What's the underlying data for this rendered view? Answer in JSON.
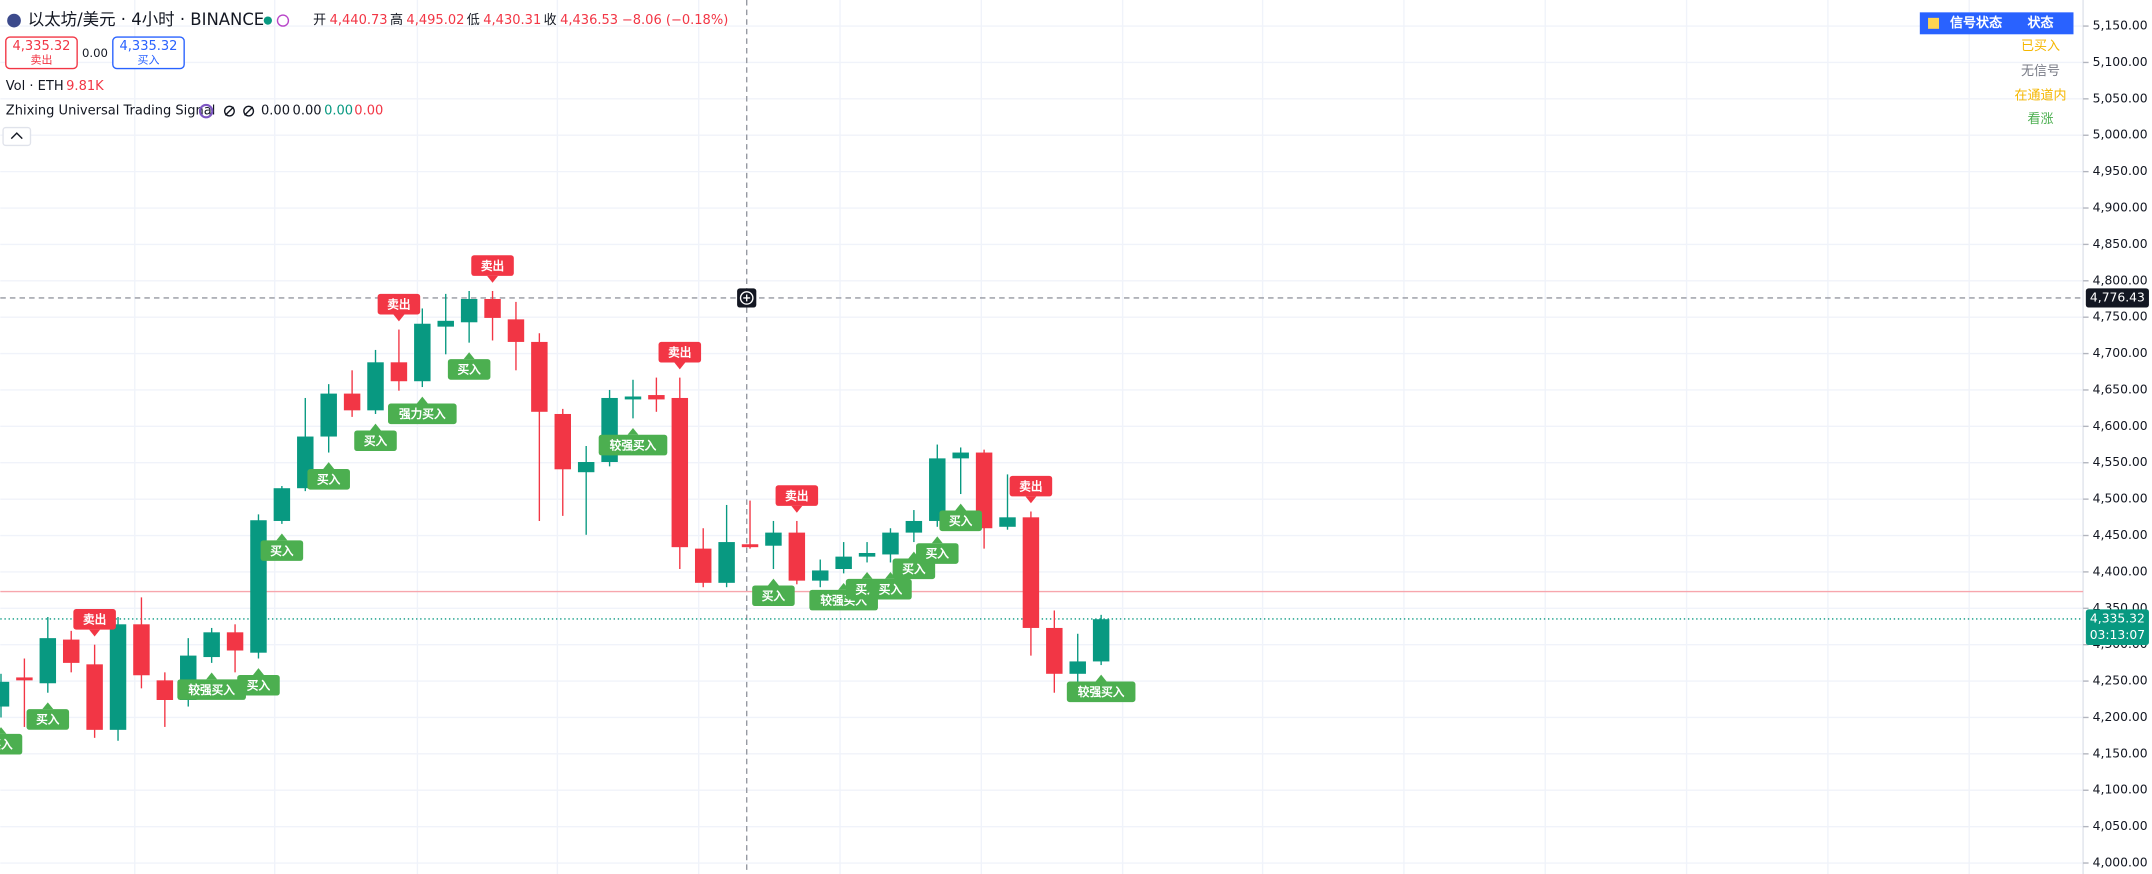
{
  "header": {
    "title": "以太坊/美元 · 4小时 · BINANCE",
    "open_label": "开",
    "open": "4,440.73",
    "high_label": "高",
    "high": "4,495.02",
    "low_label": "低",
    "low": "4,430.31",
    "close_label": "收",
    "close": "4,436.53",
    "change": "−8.06 (−0.18%)"
  },
  "order_panel": {
    "sell_price": "4,335.32",
    "sell": "卖出",
    "spread": "0.00",
    "buy_price": "4,335.32",
    "buy": "买入"
  },
  "volume": {
    "name": "Vol · ETH",
    "value": "9.81K"
  },
  "indicator": {
    "name": "Zhixing Universal Trading Signal",
    "values": [
      "0.00",
      "0.00",
      "0.00",
      "0.00"
    ]
  },
  "status_table": {
    "header": [
      "信号状态",
      "状态"
    ],
    "rows": [
      "已买入",
      "无信号",
      "在通道内",
      "看涨"
    ]
  },
  "chart_data": {
    "type": "candlestick",
    "up_color": "#089981",
    "down_color": "#f23645",
    "grid": true,
    "open": [
      4215,
      4255,
      4247,
      4307,
      4273,
      4183,
      4328,
      4251,
      4224,
      4283,
      4317,
      4289,
      4470,
      4515,
      4586,
      4645,
      4622,
      4688,
      4662,
      4737,
      4743,
      4775,
      4747,
      4716,
      4617,
      4537,
      4551,
      4637,
      4643,
      4639,
      4432,
      4385,
      4438,
      4436,
      4454,
      4388,
      4404,
      4421,
      4424,
      4454,
      4470,
      4556,
      4564,
      4462,
      4475,
      4323,
      4260,
      4277
    ],
    "high": [
      4260,
      4281,
      4338,
      4319,
      4300,
      4338,
      4365,
      4262,
      4309,
      4323,
      4328,
      4479,
      4518,
      4639,
      4658,
      4677,
      4705,
      4733,
      4762,
      4782,
      4786,
      4786,
      4771,
      4728,
      4624,
      4573,
      4650,
      4664,
      4667,
      4667,
      4460,
      4492,
      4498,
      4470,
      4470,
      4417,
      4441,
      4441,
      4460,
      4485,
      4575,
      4571,
      4568,
      4534,
      4483,
      4347,
      4315,
      4341
    ],
    "low": [
      4200,
      4187,
      4234,
      4262,
      4172,
      4168,
      4240,
      4187,
      4215,
      4275,
      4262,
      4281,
      4466,
      4511,
      4564,
      4613,
      4617,
      4649,
      4654,
      4699,
      4715,
      4718,
      4677,
      4470,
      4477,
      4451,
      4545,
      4611,
      4620,
      4404,
      4379,
      4379,
      4432,
      4404,
      4383,
      4379,
      4398,
      4413,
      4413,
      4441,
      4462,
      4507,
      4432,
      4458,
      4285,
      4234,
      4243,
      4272
    ],
    "close": [
      4249,
      4251,
      4309,
      4275,
      4183,
      4328,
      4258,
      4224,
      4285,
      4317,
      4292,
      4471,
      4515,
      4586,
      4645,
      4622,
      4688,
      4662,
      4741,
      4745,
      4775,
      4749,
      4716,
      4620,
      4541,
      4551,
      4639,
      4641,
      4637,
      4434,
      4385,
      4441,
      4434,
      4454,
      4388,
      4402,
      4421,
      4426,
      4454,
      4470,
      4556,
      4564,
      4460,
      4475,
      4323,
      4260,
      4277,
      4335
    ],
    "sell_signals": [
      null,
      null,
      null,
      null,
      "卖出",
      null,
      null,
      null,
      null,
      null,
      null,
      null,
      null,
      null,
      null,
      null,
      null,
      "卖出",
      null,
      null,
      null,
      "卖出",
      null,
      null,
      null,
      null,
      null,
      null,
      null,
      "卖出",
      null,
      null,
      null,
      null,
      "卖出",
      null,
      null,
      null,
      null,
      null,
      null,
      null,
      null,
      null,
      "卖出",
      null,
      null,
      null
    ],
    "buy_signals": [
      "买入",
      null,
      "买入",
      null,
      null,
      null,
      null,
      null,
      null,
      "较强买入",
      null,
      "买入",
      "买入",
      null,
      "买入",
      null,
      "买入",
      null,
      "强力买入",
      null,
      "买入",
      null,
      null,
      null,
      null,
      null,
      null,
      "较强买入",
      null,
      null,
      null,
      null,
      null,
      "买入",
      null,
      null,
      "较强买入",
      "买入",
      "买入",
      "买入",
      "买入",
      "买入",
      null,
      null,
      null,
      null,
      null,
      "较强买入"
    ],
    "ylim": [
      4000,
      5150
    ],
    "yticks": [
      {
        "value": 4000,
        "label": "4,000.00"
      },
      {
        "value": 4050,
        "label": "4,050.00"
      },
      {
        "value": 4100,
        "label": "4,100.00"
      },
      {
        "value": 4150,
        "label": "4,150.00"
      },
      {
        "value": 4200,
        "label": "4,200.00"
      },
      {
        "value": 4250,
        "label": "4,250.00"
      },
      {
        "value": 4300,
        "label": "4,300.00"
      },
      {
        "value": 4350,
        "label": "4,350.00"
      },
      {
        "value": 4400,
        "label": "4,400.00"
      },
      {
        "value": 4450,
        "label": "4,450.00"
      },
      {
        "value": 4500,
        "label": "4,500.00"
      },
      {
        "value": 4550,
        "label": "4,550.00"
      },
      {
        "value": 4600,
        "label": "4,600.00"
      },
      {
        "value": 4650,
        "label": "4,650.00"
      },
      {
        "value": 4700,
        "label": "4,700.00"
      },
      {
        "value": 4750,
        "label": "4,750.00"
      },
      {
        "value": 4800,
        "label": "4,800.00"
      },
      {
        "value": 4850,
        "label": "4,850.00"
      },
      {
        "value": 4900,
        "label": "4,900.00"
      },
      {
        "value": 4950,
        "label": "4,950.00"
      },
      {
        "value": 5000,
        "label": "5,000.00"
      },
      {
        "value": 5050,
        "label": "5,050.00"
      },
      {
        "value": 5100,
        "label": "5,100.00"
      },
      {
        "value": 5150,
        "label": "5,150.00"
      }
    ],
    "level_line": 4373,
    "crosshair_price": {
      "value": 4776.43,
      "label": "4,776.43"
    },
    "current_price": {
      "value": 4335.32,
      "label": "4,335.32"
    },
    "countdown": "03:13:07"
  }
}
